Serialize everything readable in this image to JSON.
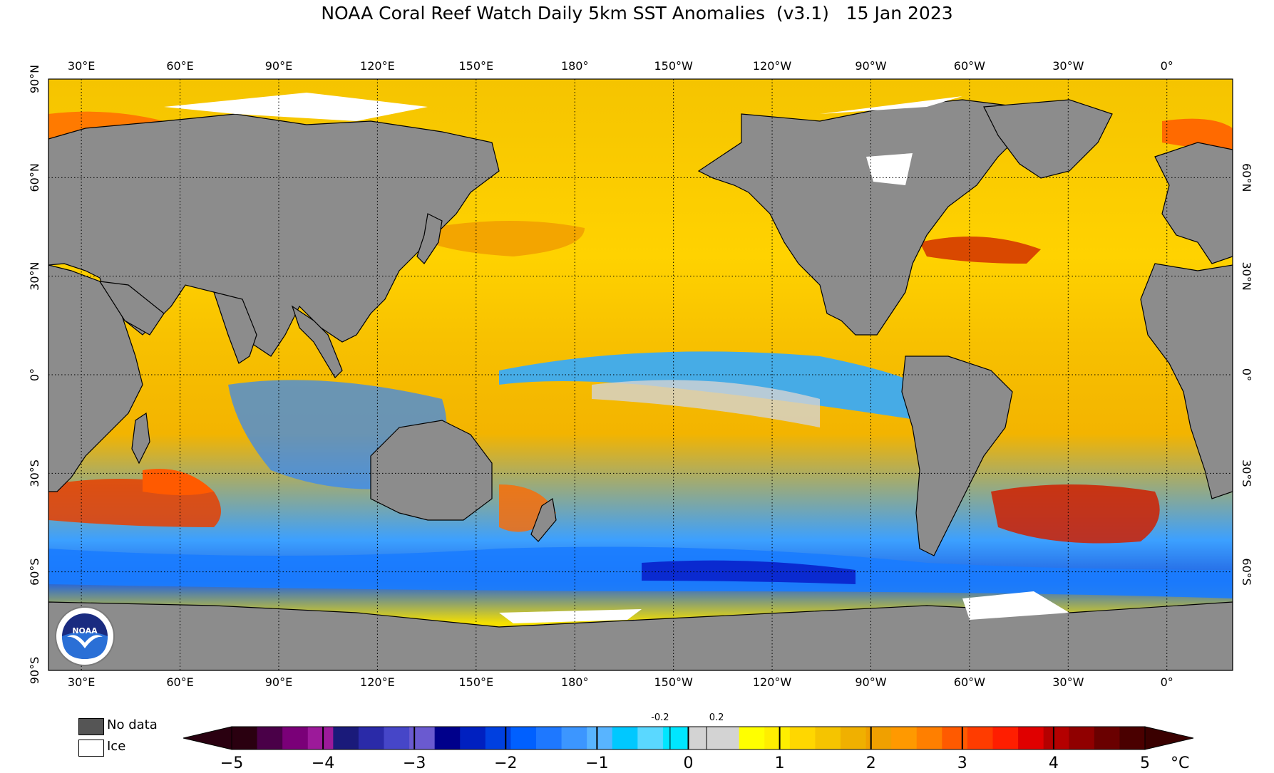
{
  "title": "NOAA Coral Reef Watch Daily 5km SST Anomalies  (v3.1)   15 Jan 2023",
  "map": {
    "lon_labels": [
      "30°E",
      "60°E",
      "90°E",
      "120°E",
      "150°E",
      "180°",
      "150°W",
      "120°W",
      "90°W",
      "60°W",
      "30°W",
      "0°"
    ],
    "lat_labels_left": [
      "90°N",
      "60°N",
      "30°N",
      "0°",
      "30°S",
      "60°S",
      "90°S"
    ],
    "lat_labels_right": [
      "60°N",
      "30°N",
      "0°",
      "30°S",
      "60°S"
    ],
    "colors": {
      "land": "#8c8c8c",
      "ice": "#ffffff",
      "ocean_warm": "#f5c400",
      "ocean_cool": "#1e90ff",
      "near_zero": "#d3d3d3"
    }
  },
  "legend": {
    "no_data_label": "No data",
    "ice_label": "Ice",
    "unit": "°C",
    "ticks": [
      "−5",
      "−4",
      "−3",
      "−2",
      "−1",
      "0",
      "1",
      "2",
      "3",
      "4",
      "5"
    ],
    "minor_ticks": [
      "-0.2",
      "0.2"
    ],
    "scale_min": -5,
    "scale_max": 5,
    "color_stops": [
      "#2a0010",
      "#4a0048",
      "#7a0078",
      "#9c1a9a",
      "#1a1a7a",
      "#2a2aa8",
      "#4646c8",
      "#6a5ad0",
      "#00008b",
      "#0020c0",
      "#0040e0",
      "#0060ff",
      "#1e78ff",
      "#3c96ff",
      "#58b4ff",
      "#00c8ff",
      "#5ad8ff",
      "#00e6ff",
      "#d3d3d3",
      "#d3d3d3",
      "#ffff00",
      "#ffee00",
      "#ffd700",
      "#f5c400",
      "#f0b000",
      "#f0a000",
      "#ff9900",
      "#ff7f00",
      "#ff5a00",
      "#ff3c00",
      "#ff1e00",
      "#e00000",
      "#b40000",
      "#900000",
      "#6a0000",
      "#4a0000"
    ]
  },
  "logo": {
    "text": "NOAA"
  }
}
